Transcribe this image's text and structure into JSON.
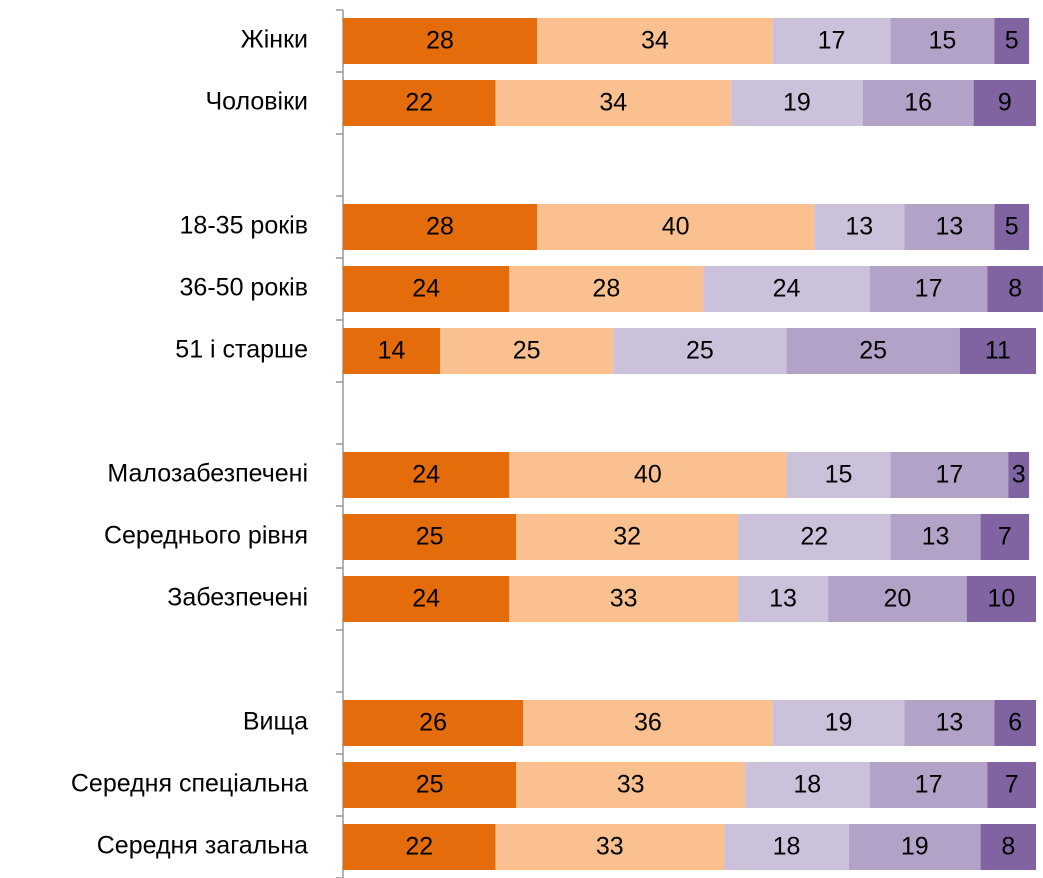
{
  "chart_data": {
    "type": "stacked_bar_horizontal",
    "categories": [
      "Жінки",
      "Чоловіки",
      null,
      "18-35 років",
      "36-50 років",
      "51 і старше",
      null,
      "Малозабезпечені",
      "Середнього рівня",
      "Забезпечені",
      null,
      "Вища",
      "Середня спеціальна",
      "Середня загальна"
    ],
    "series": [
      {
        "color": "#e46c0a",
        "values": [
          28,
          22,
          null,
          28,
          24,
          14,
          null,
          24,
          25,
          24,
          null,
          26,
          25,
          22
        ]
      },
      {
        "color": "#fac090",
        "values": [
          34,
          34,
          null,
          40,
          28,
          25,
          null,
          40,
          32,
          33,
          null,
          36,
          33,
          33
        ]
      },
      {
        "color": "#ccc1da",
        "values": [
          17,
          19,
          null,
          13,
          24,
          25,
          null,
          15,
          22,
          13,
          null,
          19,
          18,
          18
        ]
      },
      {
        "color": "#b3a2c7",
        "values": [
          15,
          16,
          null,
          13,
          17,
          25,
          null,
          17,
          13,
          20,
          null,
          13,
          17,
          19
        ]
      },
      {
        "color": "#8064a2",
        "values": [
          5,
          9,
          null,
          5,
          8,
          11,
          null,
          3,
          7,
          10,
          null,
          6,
          7,
          8
        ]
      }
    ],
    "xlim": [
      0,
      100
    ]
  }
}
